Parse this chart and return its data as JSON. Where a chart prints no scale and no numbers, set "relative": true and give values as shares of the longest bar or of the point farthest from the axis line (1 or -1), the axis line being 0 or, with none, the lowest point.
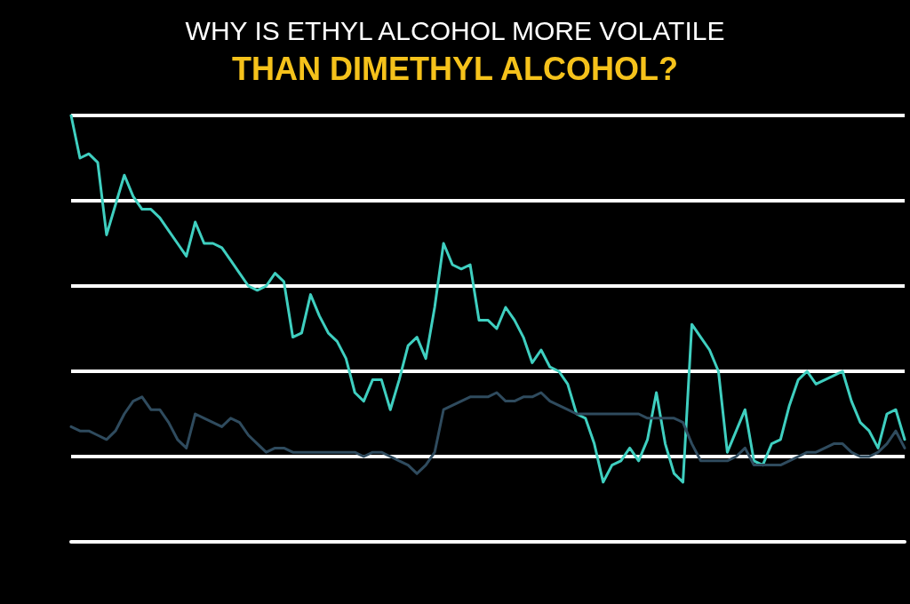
{
  "chart_data": {
    "type": "line",
    "title": "WHY IS ETHYL ALCOHOL MORE VOLATILE",
    "subtitle": "THAN DIMETHYL ALCOHOL?",
    "relative": true,
    "grid": "y",
    "marker": "none",
    "line_style": "solid",
    "categories": [
      null,
      null,
      null,
      null,
      null,
      null,
      null,
      null,
      null,
      null,
      null,
      null,
      null,
      null,
      null,
      null,
      null,
      null,
      null,
      null,
      null,
      null,
      null,
      null,
      null,
      null,
      null,
      null,
      null,
      null,
      null,
      null,
      null,
      null,
      null,
      null,
      null,
      null,
      null,
      null,
      null,
      null,
      null,
      null,
      null,
      null,
      null,
      null,
      null,
      null,
      null,
      null,
      null,
      null,
      null,
      null,
      null,
      null,
      null,
      null,
      null,
      null,
      null,
      null,
      null,
      null,
      null,
      null,
      null,
      null,
      null,
      null,
      null,
      null,
      null,
      null,
      null,
      null,
      null,
      null,
      null,
      null,
      null,
      null,
      null,
      null,
      null,
      null,
      null,
      null,
      null,
      null,
      null,
      null,
      null
    ],
    "series": [
      {
        "color": "#3fcfc0",
        "values": [
          1.0,
          0.9,
          0.91,
          0.89,
          0.72,
          0.79,
          0.86,
          0.81,
          0.78,
          0.78,
          0.76,
          0.73,
          0.7,
          0.67,
          0.75,
          0.7,
          0.7,
          0.69,
          0.66,
          0.63,
          0.6,
          0.59,
          0.6,
          0.63,
          0.61,
          0.48,
          0.49,
          0.58,
          0.53,
          0.49,
          0.47,
          0.43,
          0.35,
          0.33,
          0.38,
          0.38,
          0.31,
          0.38,
          0.46,
          0.48,
          0.43,
          0.55,
          0.7,
          0.65,
          0.64,
          0.65,
          0.52,
          0.52,
          0.5,
          0.55,
          0.52,
          0.48,
          0.42,
          0.45,
          0.41,
          0.4,
          0.37,
          0.3,
          0.29,
          0.23,
          0.14,
          0.18,
          0.19,
          0.22,
          0.19,
          0.24,
          0.35,
          0.23,
          0.16,
          0.14,
          0.51,
          0.48,
          0.45,
          0.4,
          0.21,
          0.26,
          0.31,
          0.19,
          0.18,
          0.23,
          0.24,
          0.32,
          0.38,
          0.4,
          0.37,
          0.38,
          0.39,
          0.4,
          0.33,
          0.28,
          0.26,
          0.22,
          0.3,
          0.31,
          0.24
        ]
      },
      {
        "color": "#2f4b5e",
        "values": [
          0.27,
          0.26,
          0.26,
          0.25,
          0.24,
          0.26,
          0.3,
          0.33,
          0.34,
          0.31,
          0.31,
          0.28,
          0.24,
          0.22,
          0.3,
          0.29,
          0.28,
          0.27,
          0.29,
          0.28,
          0.25,
          0.23,
          0.21,
          0.22,
          0.22,
          0.21,
          0.21,
          0.21,
          0.21,
          0.21,
          0.21,
          0.21,
          0.21,
          0.2,
          0.21,
          0.21,
          0.2,
          0.19,
          0.18,
          0.16,
          0.18,
          0.21,
          0.31,
          0.32,
          0.33,
          0.34,
          0.34,
          0.34,
          0.35,
          0.33,
          0.33,
          0.34,
          0.34,
          0.35,
          0.33,
          0.32,
          0.31,
          0.3,
          0.3,
          0.3,
          0.3,
          0.3,
          0.3,
          0.3,
          0.3,
          0.29,
          0.29,
          0.29,
          0.29,
          0.28,
          0.23,
          0.19,
          0.19,
          0.19,
          0.19,
          0.2,
          0.22,
          0.18,
          0.18,
          0.18,
          0.18,
          0.19,
          0.2,
          0.21,
          0.21,
          0.22,
          0.23,
          0.23,
          0.21,
          0.2,
          0.2,
          0.21,
          0.23,
          0.26,
          0.22
        ]
      }
    ]
  }
}
